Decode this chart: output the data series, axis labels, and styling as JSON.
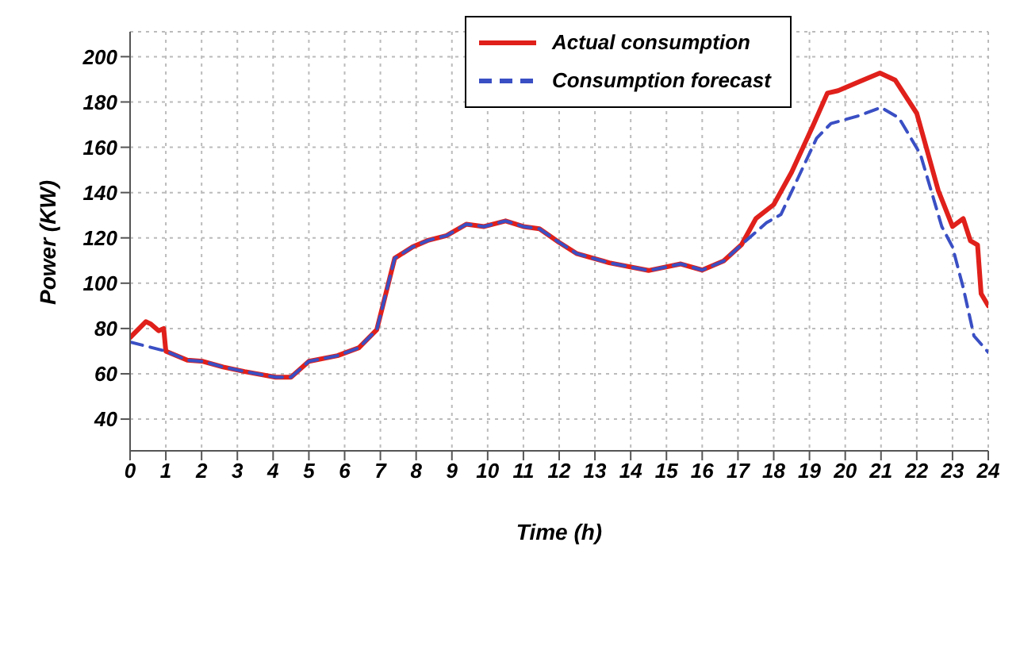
{
  "chart_data": {
    "type": "line",
    "xlabel": "Time (h)",
    "ylabel": "Power (KW)",
    "xlim": [
      0,
      24
    ],
    "xticks": [
      0,
      1,
      2,
      3,
      4,
      5,
      6,
      7,
      8,
      9,
      10,
      11,
      12,
      13,
      14,
      15,
      16,
      17,
      18,
      19,
      20,
      21,
      22,
      23,
      24
    ],
    "ylim": [
      26,
      211
    ],
    "yticks": [
      40,
      60,
      80,
      100,
      120,
      140,
      160,
      180,
      200
    ],
    "grid": true,
    "legend": "top right",
    "marker": "none",
    "series": [
      {
        "name": "Actual consumption",
        "color": "#e0201b",
        "line_style": "solid",
        "x": [
          0,
          0.44,
          0.58,
          0.8,
          0.94,
          1.0,
          1.6,
          2.04,
          2.6,
          3.2,
          4.07,
          4.5,
          5.0,
          5.8,
          6.4,
          6.9,
          7.4,
          7.9,
          8.35,
          8.85,
          9.4,
          9.9,
          10.5,
          11.0,
          11.45,
          12.0,
          12.5,
          13.4,
          14.5,
          15.4,
          16.0,
          16.6,
          17.1,
          17.5,
          18.0,
          18.5,
          19.1,
          19.5,
          19.8,
          20.4,
          20.97,
          21.4,
          22.0,
          22.6,
          23.0,
          23.3,
          23.5,
          23.7,
          23.8,
          24.0
        ],
        "values": [
          76,
          83,
          82,
          79,
          80,
          70,
          66,
          65.5,
          63,
          61,
          58.5,
          58.5,
          65.5,
          68,
          71.5,
          79.5,
          111,
          116,
          119,
          121,
          126,
          125,
          127.5,
          125,
          124,
          118,
          113,
          109,
          105.6,
          108.5,
          105.8,
          109.8,
          117,
          128.5,
          134.7,
          149,
          169.6,
          183.9,
          185,
          189,
          192.8,
          189.6,
          175,
          141,
          125,
          128.5,
          118.7,
          116.9,
          95.4,
          90
        ]
      },
      {
        "name": "Consumption forecast",
        "color": "#3a4fc4",
        "line_style": "dashed",
        "x": [
          0,
          1.0,
          1.6,
          2.04,
          2.6,
          3.2,
          4.07,
          4.5,
          5.0,
          5.8,
          6.4,
          6.9,
          7.4,
          7.9,
          8.35,
          8.85,
          9.4,
          9.9,
          10.5,
          11.0,
          11.45,
          12.0,
          12.5,
          13.4,
          14.5,
          15.4,
          16.0,
          16.6,
          17.1,
          17.8,
          18.2,
          19.2,
          19.6,
          20.4,
          21.0,
          21.5,
          22.1,
          22.7,
          23.0,
          23.3,
          23.6,
          24.0
        ],
        "values": [
          74,
          70,
          66,
          65.5,
          63,
          61,
          58.5,
          58.5,
          65.5,
          68,
          71.5,
          79.5,
          111,
          116,
          119,
          121,
          126,
          125,
          127.5,
          125,
          124,
          118,
          113,
          109,
          105.6,
          108.5,
          105.8,
          109.8,
          117,
          126.7,
          130.3,
          164,
          170.5,
          174,
          177.6,
          173,
          157,
          125,
          116,
          98,
          76.7,
          69.5
        ]
      }
    ]
  }
}
